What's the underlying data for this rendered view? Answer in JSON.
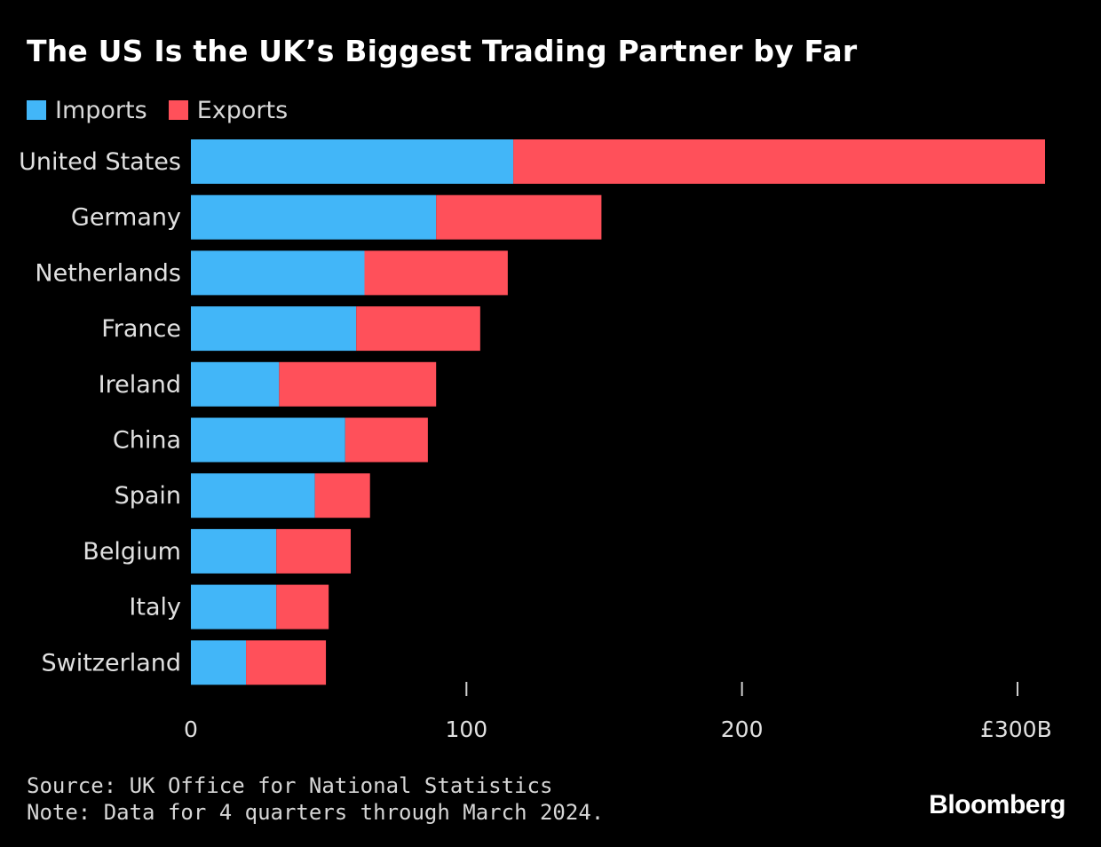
{
  "title": "The US Is the UK’s Biggest Trading Partner by Far",
  "colors": {
    "imports": "#42b6f8",
    "exports": "#ff505a",
    "background": "#000000"
  },
  "chart_data": {
    "type": "bar",
    "orientation": "horizontal",
    "stacked": true,
    "title": "The US Is the UK’s Biggest Trading Partner by Far",
    "categories": [
      "United States",
      "Germany",
      "Netherlands",
      "France",
      "Ireland",
      "China",
      "Spain",
      "Belgium",
      "Italy",
      "Switzerland"
    ],
    "series": [
      {
        "name": "Imports",
        "values": [
          117,
          89,
          63,
          60,
          32,
          56,
          45,
          31,
          31,
          20
        ]
      },
      {
        "name": "Exports",
        "values": [
          193,
          60,
          52,
          45,
          57,
          30,
          20,
          27,
          19,
          29
        ]
      }
    ],
    "xlim": [
      0,
      310
    ],
    "xticks": [
      0,
      100,
      200,
      300
    ],
    "xtick_labels": [
      "0",
      "100",
      "200",
      "£300B"
    ],
    "xlabel": "",
    "ylabel": "",
    "legend": "top-left",
    "grid": false
  },
  "footer": {
    "source": "Source: UK Office for National Statistics",
    "note": "Note: Data for 4 quarters through March 2024."
  },
  "brand": "Bloomberg"
}
